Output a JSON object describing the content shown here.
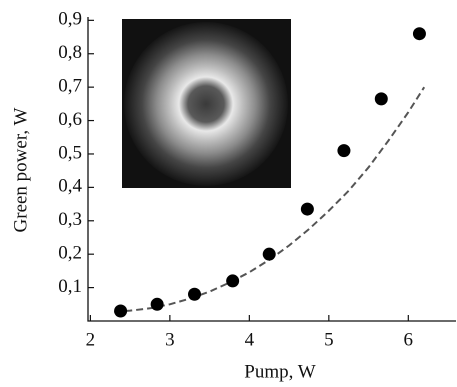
{
  "chart_data": {
    "type": "scatter",
    "xlabel": "Pump, W",
    "ylabel": "Green power, W",
    "series": [
      {
        "color": "#000000",
        "marker": "circle",
        "x": [
          2.38,
          2.84,
          3.31,
          3.79,
          4.25,
          4.73,
          5.19,
          5.66,
          6.14
        ],
        "values": [
          0.03,
          0.05,
          0.08,
          0.12,
          0.2,
          0.335,
          0.51,
          0.665,
          0.86
        ]
      },
      {
        "color": "#555555",
        "style": "dashed",
        "x": [
          2.3,
          2.5,
          2.75,
          3,
          3.25,
          3.5,
          3.75,
          4,
          4.25,
          4.5,
          4.75,
          5,
          5.25,
          5.5,
          5.75,
          6,
          6.2
        ],
        "values": [
          0.028,
          0.031,
          0.038,
          0.05,
          0.067,
          0.088,
          0.115,
          0.146,
          0.183,
          0.226,
          0.275,
          0.33,
          0.39,
          0.46,
          0.54,
          0.625,
          0.7
        ]
      }
    ],
    "xlim": [
      1.97,
      6.6
    ],
    "ylim": [
      0,
      0.91
    ],
    "xticks": [
      2,
      3,
      4,
      5,
      6
    ],
    "yticks": [
      {
        "value": 0.1,
        "label": "0,1"
      },
      {
        "value": 0.2,
        "label": "0,2"
      },
      {
        "value": 0.3,
        "label": "0,3"
      },
      {
        "value": 0.4,
        "label": "0,4"
      },
      {
        "value": 0.5,
        "label": "0,5"
      },
      {
        "value": 0.6,
        "label": "0,6"
      },
      {
        "value": 0.7,
        "label": "0,7"
      },
      {
        "value": 0.8,
        "label": "0,8"
      },
      {
        "value": 0.9,
        "label": "0,9"
      }
    ]
  }
}
